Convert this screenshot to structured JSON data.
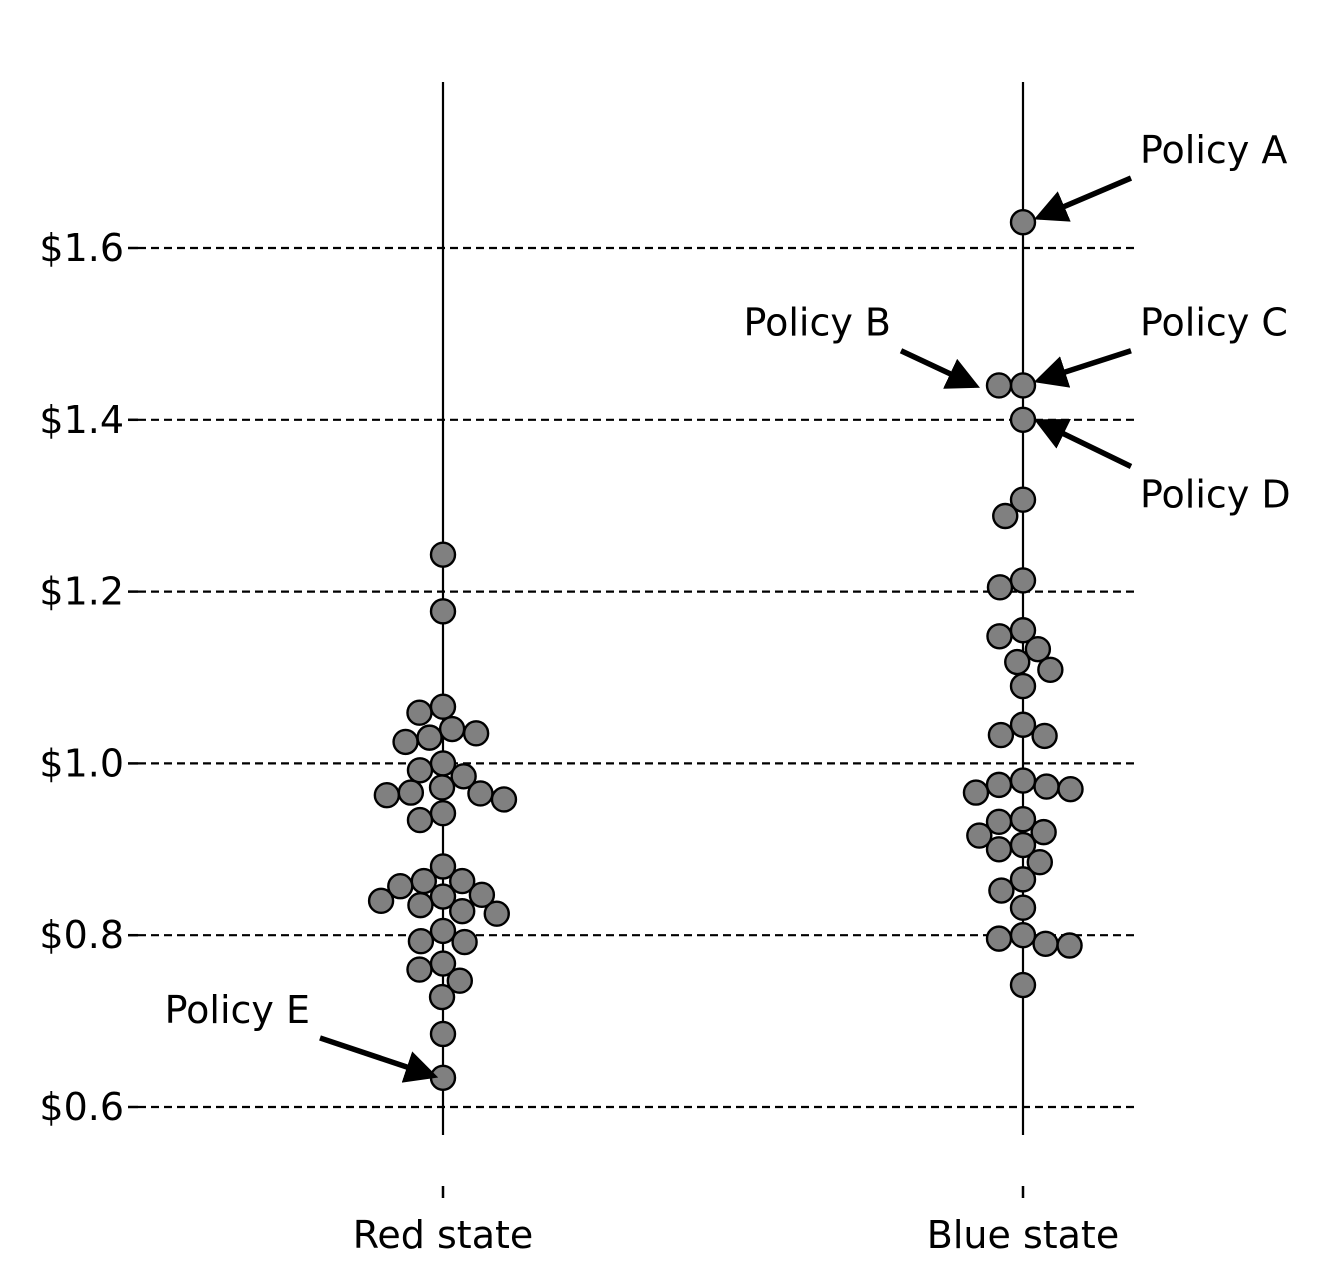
{
  "chart_data": {
    "type": "scatter",
    "title": "",
    "xlabel": "",
    "ylabel": "",
    "categories": [
      "Red state",
      "Blue state"
    ],
    "y_ticks": [
      0.6,
      0.8,
      1.0,
      1.2,
      1.4,
      1.6
    ],
    "y_tick_labels": [
      "$0.6",
      "$0.8",
      "$1.0",
      "$1.2",
      "$1.4",
      "$1.6"
    ],
    "ylim": [
      0.53,
      1.78
    ],
    "grid": "horizontal dashed at y ticks",
    "marker_color": "#808080",
    "marker_edge_color": "#000000",
    "series": [
      {
        "category": "Red state",
        "values": [
          1.243,
          1.177,
          1.066,
          1.059,
          1.04,
          1.035,
          1.03,
          1.025,
          1.0,
          0.992,
          0.985,
          0.972,
          0.966,
          0.965,
          0.963,
          0.958,
          0.942,
          0.934,
          0.88,
          0.863,
          0.863,
          0.857,
          0.847,
          0.845,
          0.84,
          0.835,
          0.828,
          0.825,
          0.805,
          0.793,
          0.792,
          0.767,
          0.76,
          0.747,
          0.728,
          0.685,
          0.634
        ]
      },
      {
        "category": "Blue state",
        "values": [
          1.63,
          1.44,
          1.44,
          1.4,
          1.307,
          1.288,
          1.213,
          1.205,
          1.155,
          1.148,
          1.133,
          1.118,
          1.109,
          1.09,
          1.045,
          1.033,
          1.032,
          0.98,
          0.975,
          0.973,
          0.97,
          0.966,
          0.935,
          0.932,
          0.92,
          0.916,
          0.905,
          0.9,
          0.885,
          0.865,
          0.852,
          0.832,
          0.8,
          0.796,
          0.79,
          0.788,
          0.742
        ]
      }
    ],
    "annotations": [
      {
        "text": "Policy A",
        "category": "Blue state",
        "value": 1.63,
        "text_value": 1.714,
        "text_side": "right"
      },
      {
        "text": "Policy B",
        "category": "Blue state",
        "value": 1.44,
        "text_value": 1.513,
        "text_side": "left"
      },
      {
        "text": "Policy C",
        "category": "Blue state",
        "value": 1.44,
        "text_value": 1.513,
        "text_side": "right"
      },
      {
        "text": "Policy D",
        "category": "Blue state",
        "value": 1.4,
        "text_value": 1.313,
        "text_side": "right"
      },
      {
        "text": "Policy E",
        "category": "Red state",
        "value": 0.634,
        "text_value": 0.713,
        "text_side": "left"
      }
    ]
  }
}
